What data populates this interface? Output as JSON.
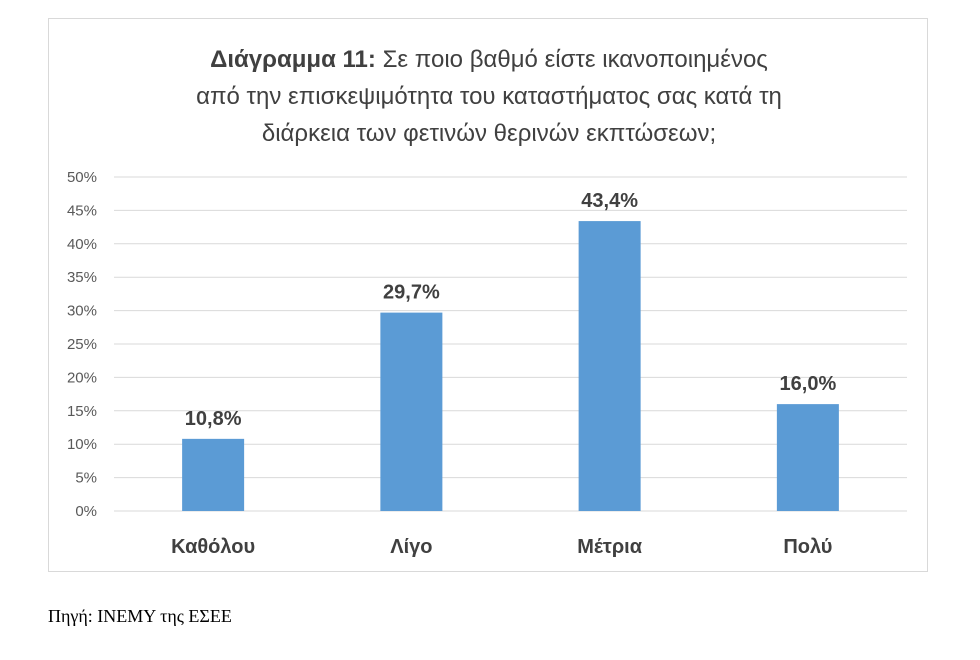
{
  "chart": {
    "title_prefix": "Διάγραμμα 11:",
    "title_line1": " Σε ποιο βαθμό είστε  ικανοποιημένος",
    "title_line2": "από την επισκεψιμότητα του καταστήματος σας κατά  τη",
    "title_line3": "διάρκεια  των φετινών θερινών εκπτώσεων;"
  },
  "source": "Πηγή: ΙΝΕΜΥ της ΕΣΕΕ",
  "colors": {
    "bar": "#5b9bd5",
    "grid": "#d9d9d9",
    "text": "#404040",
    "tick_text": "#595959"
  },
  "chart_data": {
    "type": "bar",
    "categories": [
      "Καθόλου",
      "Λίγο",
      "Μέτρια",
      "Πολύ"
    ],
    "values": [
      10.8,
      29.7,
      43.4,
      16.0
    ],
    "data_labels": [
      "10,8%",
      "29,7%",
      "43,4%",
      "16,0%"
    ],
    "yticks": [
      "0%",
      "5%",
      "10%",
      "15%",
      "20%",
      "25%",
      "30%",
      "35%",
      "40%",
      "45%",
      "50%"
    ],
    "ylim": [
      0,
      50
    ],
    "grid": true,
    "legend": "none"
  }
}
